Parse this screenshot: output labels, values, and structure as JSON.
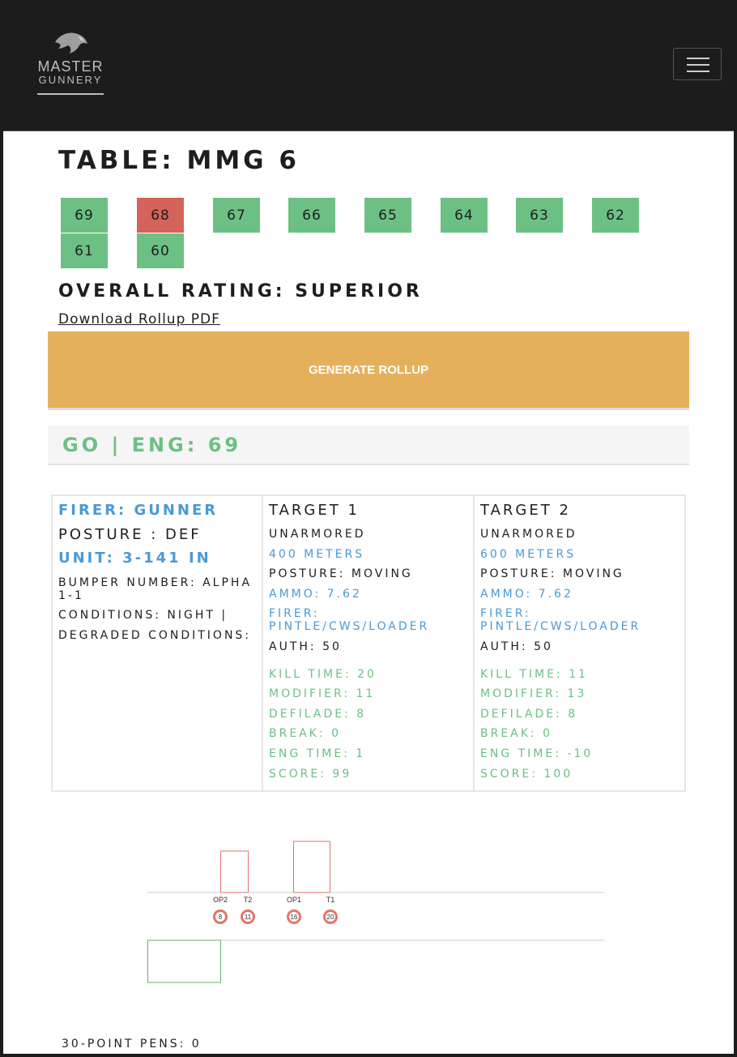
{
  "logo": {
    "line1": "MASTER",
    "line2": "GUNNERY"
  },
  "header": {
    "menu_icon": "hamburger-menu-icon"
  },
  "table": {
    "title": "TABLE: MMG 6"
  },
  "engagements": [
    {
      "label": "69",
      "status": "go"
    },
    {
      "label": "68",
      "status": "no-go"
    },
    {
      "label": "67",
      "status": "go"
    },
    {
      "label": "66",
      "status": "go"
    },
    {
      "label": "65",
      "status": "go"
    },
    {
      "label": "64",
      "status": "go"
    },
    {
      "label": "63",
      "status": "go"
    },
    {
      "label": "62",
      "status": "go"
    },
    {
      "label": "61",
      "status": "go"
    },
    {
      "label": "60",
      "status": "go"
    }
  ],
  "rating": {
    "text": "OVERALL RATING: SUPERIOR"
  },
  "rollup": {
    "download_label": "Download Rollup PDF",
    "generate_label": "GENERATE ROLLUP"
  },
  "engagement": {
    "header": "GO | ENG: 69",
    "firer": {
      "firer": "FIRER: GUNNER",
      "posture": "POSTURE : DEF",
      "unit": "UNIT: 3-141 IN",
      "bumper": "BUMPER NUMBER: ALPHA 1-1",
      "conditions": "CONDITIONS: NIGHT |",
      "degraded": "DEGRADED CONDITIONS:"
    },
    "targets": [
      {
        "title": "TARGET 1",
        "armor": "UNARMORED",
        "range": "400 METERS",
        "posture": "POSTURE: MOVING",
        "ammo": "AMMO: 7.62",
        "firer": "FIRER: PINTLE/CWS/LOADER",
        "auth": "AUTH: 50",
        "kill_time": "KILL TIME: 20",
        "modifier": "MODIFIER: 11",
        "defilade": "DEFILADE: 8",
        "break": "BREAK: 0",
        "eng_time": "ENG TIME: 1",
        "score": "SCORE: 99"
      },
      {
        "title": "TARGET 2",
        "armor": "UNARMORED",
        "range": "600 METERS",
        "posture": "POSTURE: MOVING",
        "ammo": "AMMO: 7.62",
        "firer": "FIRER: PINTLE/CWS/LOADER",
        "auth": "AUTH: 50",
        "kill_time": "KILL TIME: 11",
        "modifier": "MODIFIER: 13",
        "defilade": "DEFILADE: 8",
        "break": "BREAK: 0",
        "eng_time": "ENG TIME: -10",
        "score": "SCORE: 100"
      }
    ]
  },
  "timeline": {
    "markers": [
      {
        "label": "OP2",
        "time": "8"
      },
      {
        "label": "T2",
        "time": "11"
      },
      {
        "label": "OP1",
        "time": "16"
      },
      {
        "label": "T1",
        "time": "20"
      }
    ],
    "colors": {
      "target": "#e5736a",
      "firer": "#6cae6c",
      "axis": "#cccccc"
    }
  },
  "pens": {
    "text": "30-POINT PENS: 0"
  },
  "colors": {
    "go": "#6cc084",
    "no_go": "#d4635a",
    "accent": "#e5b05c",
    "blue": "#4a9ad4"
  }
}
